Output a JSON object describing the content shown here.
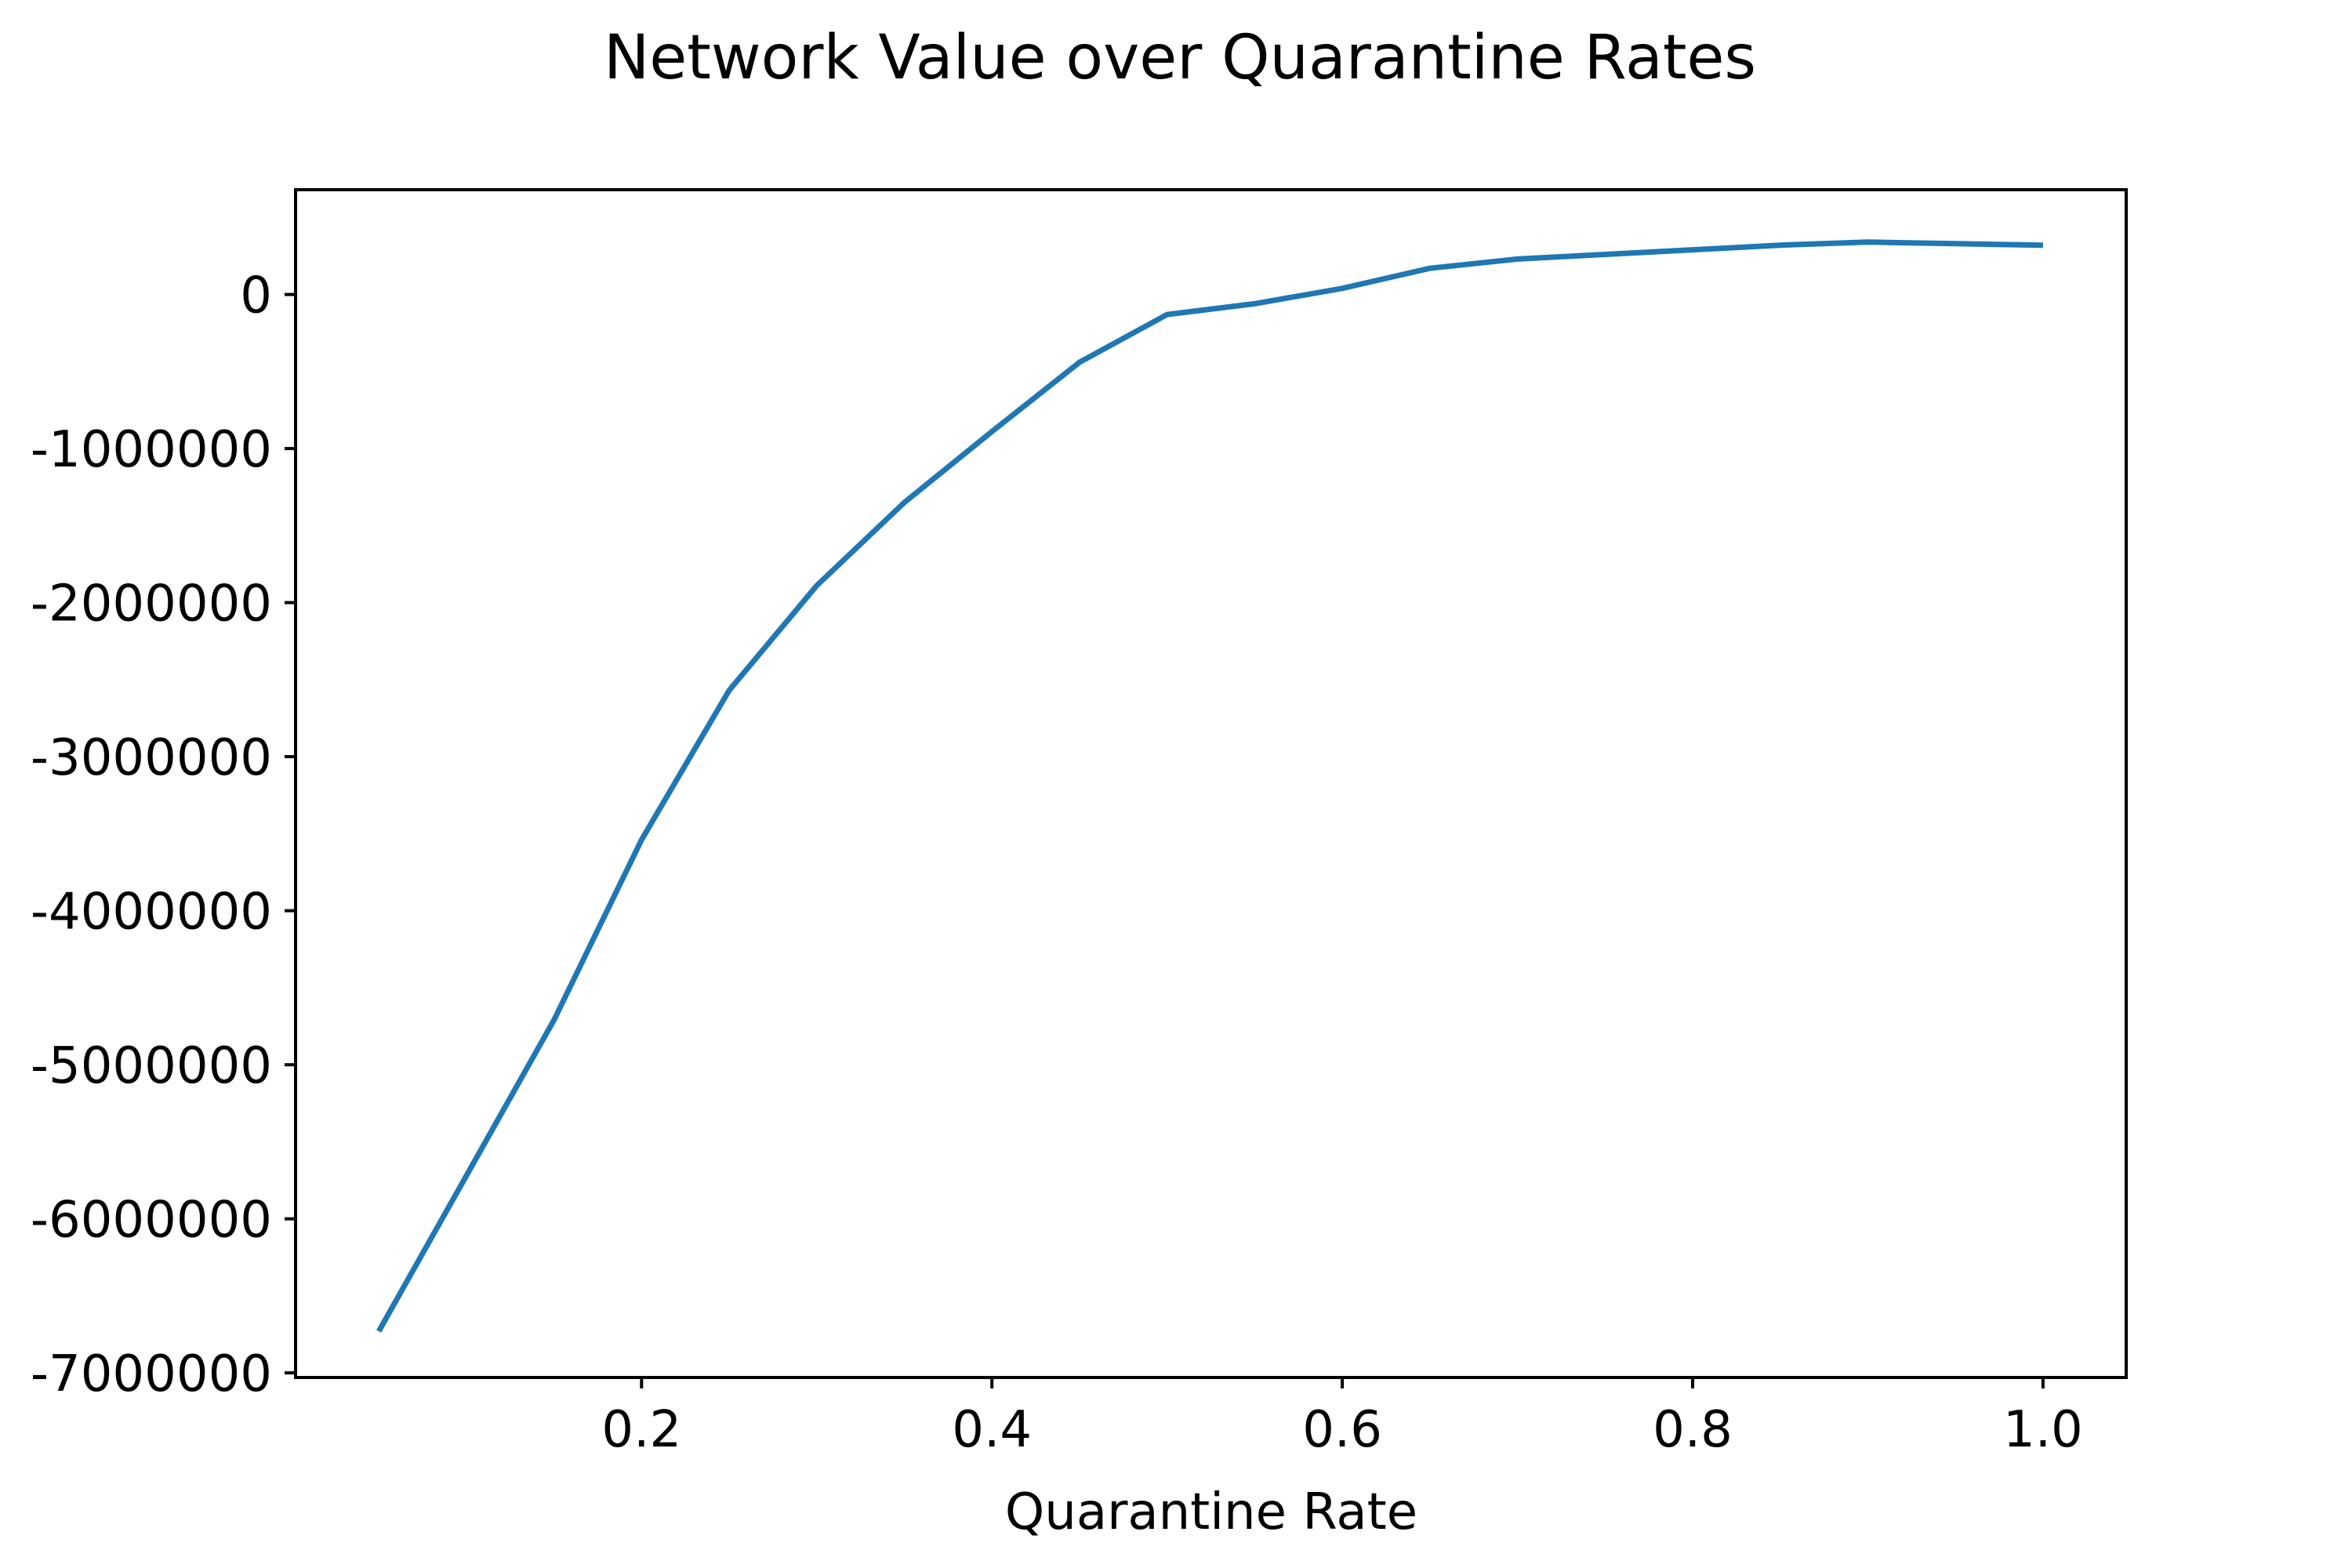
{
  "chart_data": {
    "type": "line",
    "title": "Network Value over Quarantine Rates",
    "xlabel": "Quarantine Rate",
    "ylabel": "",
    "x": [
      0.05,
      0.1,
      0.15,
      0.2,
      0.25,
      0.3,
      0.35,
      0.4,
      0.45,
      0.5,
      0.55,
      0.6,
      0.65,
      0.7,
      0.75,
      0.8,
      0.85,
      0.9,
      0.95,
      1.0
    ],
    "series": [
      {
        "color": "#1f77b4",
        "values": [
          -6730000,
          -5720000,
          -4710000,
          -3540000,
          -2570000,
          -1890000,
          -1350000,
          -890000,
          -440000,
          -130000,
          -60000,
          40000,
          170000,
          230000,
          260000,
          290000,
          320000,
          340000,
          330000,
          320000
        ]
      }
    ],
    "xlim": [
      0.0025,
      1.0475
    ],
    "ylim": [
      -7030000,
      680000
    ],
    "xticks": [
      0.2,
      0.4,
      0.6,
      0.8,
      1.0
    ],
    "xtick_labels": [
      "0.2",
      "0.4",
      "0.6",
      "0.8",
      "1.0"
    ],
    "yticks": [
      0,
      -1000000,
      -2000000,
      -3000000,
      -4000000,
      -5000000,
      -6000000,
      -7000000
    ],
    "ytick_labels": [
      "0",
      "-1000000",
      "-2000000",
      "-3000000",
      "-4000000",
      "-5000000",
      "-6000000",
      "-7000000"
    ],
    "grid": false,
    "legend": "none"
  }
}
